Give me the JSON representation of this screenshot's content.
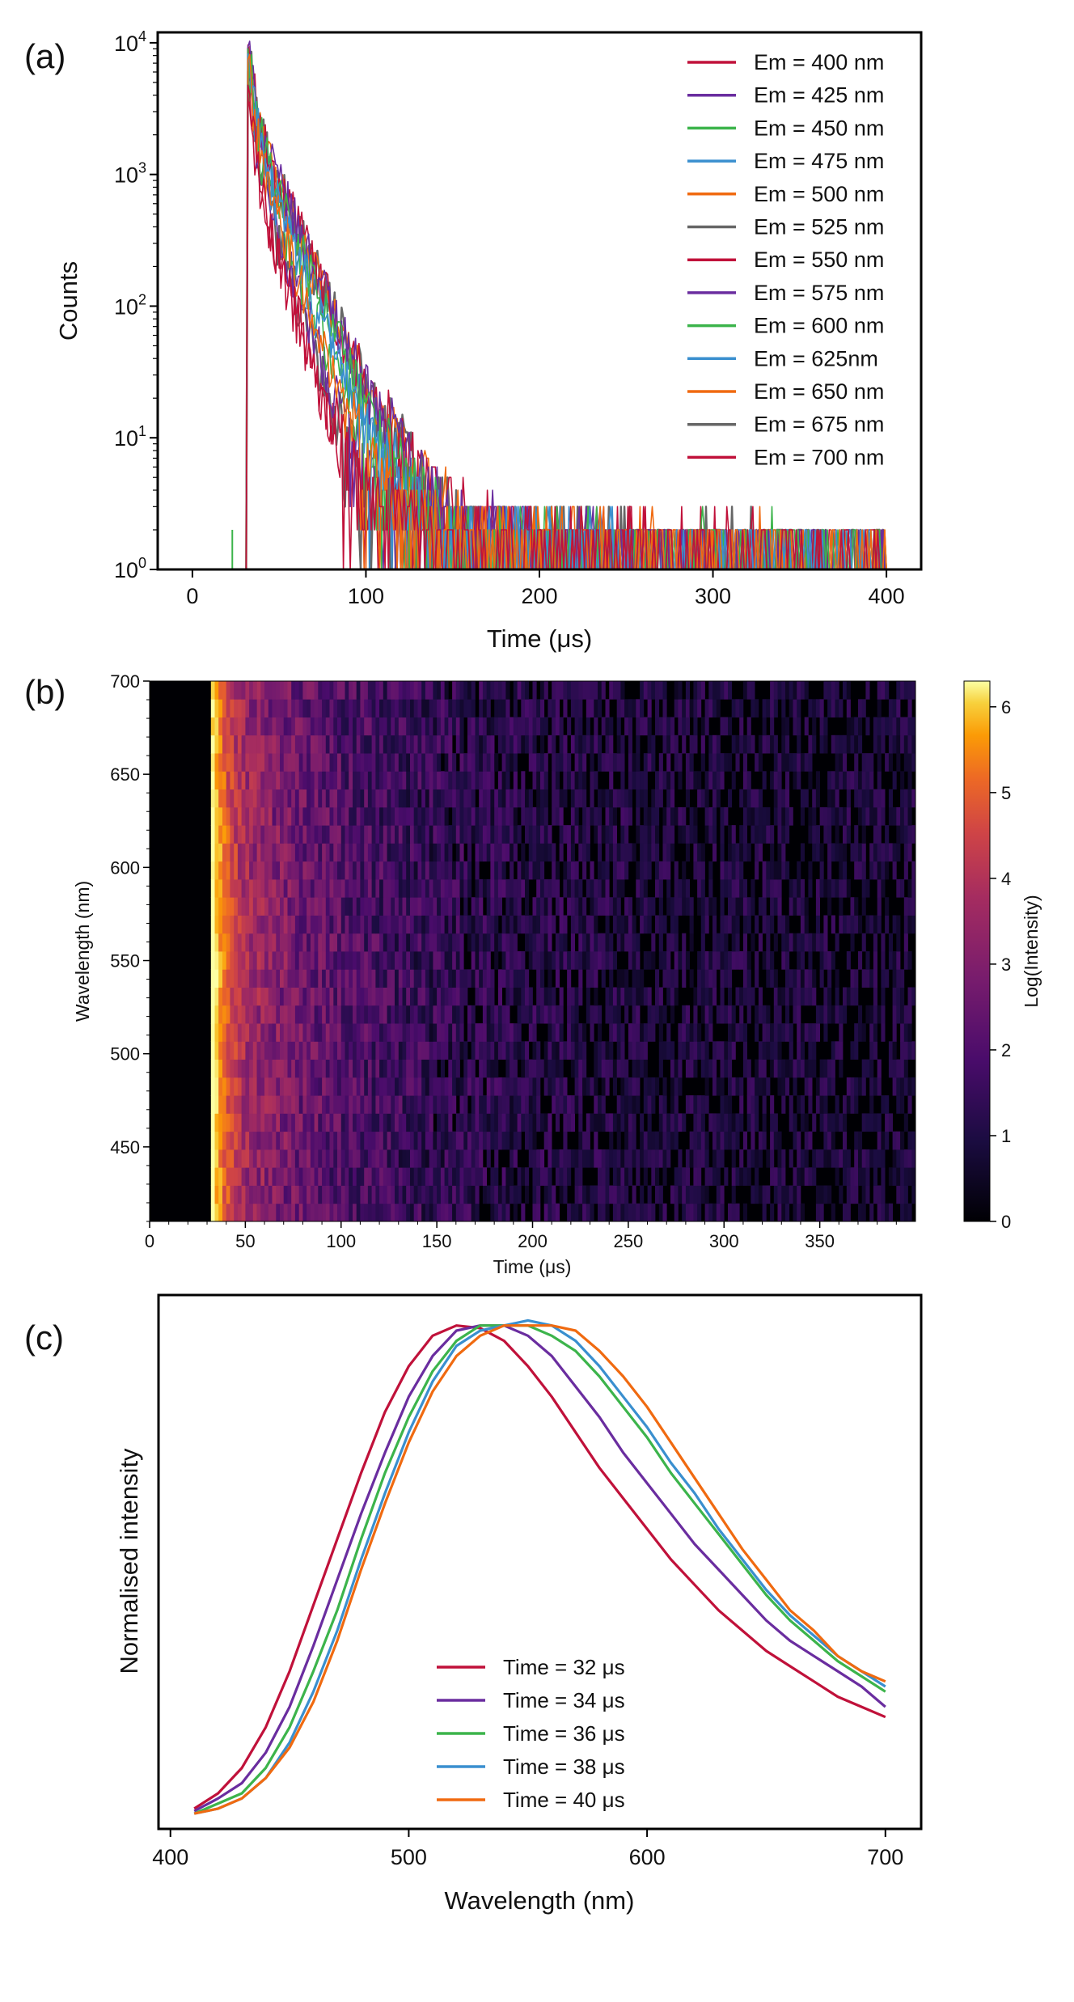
{
  "panel_labels": [
    "(a)",
    "(b)",
    "(c)"
  ],
  "chart_data": [
    {
      "panel": "(a)",
      "type": "line",
      "xlabel": "Time (μs)",
      "ylabel": "Counts",
      "xlim": [
        -20,
        420
      ],
      "ylim": [
        1,
        12000
      ],
      "yscale": "log",
      "xticks": [
        "0",
        "100",
        "200",
        "300",
        "400"
      ],
      "yticks": [
        {
          "base": "10",
          "exp": "0"
        },
        {
          "base": "10",
          "exp": "1"
        },
        {
          "base": "10",
          "exp": "2"
        },
        {
          "base": "10",
          "exp": "3"
        },
        {
          "base": "10",
          "exp": "4"
        }
      ],
      "legend_position": "top-right",
      "series": [
        {
          "name": "Em = 400 nm",
          "color": "#c0113a",
          "peak": 5000,
          "tau": 10
        },
        {
          "name": "Em = 425 nm",
          "color": "#6a2d9f",
          "peak": 6500,
          "tau": 11
        },
        {
          "name": "Em = 450 nm",
          "color": "#3cb44b",
          "peak": 8000,
          "tau": 12
        },
        {
          "name": "Em = 475 nm",
          "color": "#3a8fcf",
          "peak": 9000,
          "tau": 13
        },
        {
          "name": "Em = 500 nm",
          "color": "#f06a10",
          "peak": 10000,
          "tau": 14
        },
        {
          "name": "Em = 525 nm",
          "color": "#666666",
          "peak": 10500,
          "tau": 14
        },
        {
          "name": "Em = 550 nm",
          "color": "#c0113a",
          "peak": 11000,
          "tau": 14
        },
        {
          "name": "Em = 575 nm",
          "color": "#6a2d9f",
          "peak": 10500,
          "tau": 14
        },
        {
          "name": "Em = 600 nm",
          "color": "#3cb44b",
          "peak": 10000,
          "tau": 13
        },
        {
          "name": "Em = 625nm",
          "color": "#3a8fcf",
          "peak": 9000,
          "tau": 12
        },
        {
          "name": "Em = 650 nm",
          "color": "#f06a10",
          "peak": 8000,
          "tau": 11
        },
        {
          "name": "Em = 675 nm",
          "color": "#666666",
          "peak": 6500,
          "tau": 10
        },
        {
          "name": "Em = 700 nm",
          "color": "#c0113a",
          "peak": 5000,
          "tau": 10
        }
      ],
      "pulse_time": 32,
      "time_end": 400
    },
    {
      "panel": "(b)",
      "type": "heatmap",
      "xlabel": "Time (μs)",
      "ylabel": "Wavelength (nm)",
      "xlim": [
        0,
        400
      ],
      "ylim": [
        410,
        700
      ],
      "xticks": [
        "0",
        "50",
        "100",
        "150",
        "200",
        "250",
        "300",
        "350"
      ],
      "yticks": [
        "450",
        "500",
        "550",
        "600",
        "650",
        "700"
      ],
      "colorbar_label": "Log(Intensity)",
      "colorbar_range": [
        0,
        6.3
      ],
      "colorbar_ticks": [
        "0",
        "1",
        "2",
        "3",
        "4",
        "5",
        "6"
      ],
      "colormap": "inferno",
      "pulse_time": 32,
      "peak_wavelength": 540,
      "peak_log_intensity": 6.3
    },
    {
      "panel": "(c)",
      "type": "line",
      "xlabel": "Wavelength (nm)",
      "ylabel": "Normalised intensity",
      "xlim": [
        395,
        715
      ],
      "ylim": [
        0,
        1.05
      ],
      "xticks": [
        "400",
        "500",
        "600",
        "700"
      ],
      "legend_position": "lower-center",
      "x": [
        410,
        420,
        430,
        440,
        450,
        460,
        470,
        480,
        490,
        500,
        510,
        520,
        530,
        540,
        550,
        560,
        570,
        580,
        590,
        600,
        610,
        620,
        630,
        640,
        650,
        660,
        670,
        680,
        690,
        700
      ],
      "series": [
        {
          "name": "Time = 32 μs",
          "color": "#c0113a",
          "values": [
            0.04,
            0.07,
            0.12,
            0.2,
            0.31,
            0.44,
            0.57,
            0.7,
            0.82,
            0.91,
            0.97,
            0.99,
            0.985,
            0.96,
            0.91,
            0.85,
            0.78,
            0.71,
            0.65,
            0.59,
            0.53,
            0.48,
            0.43,
            0.39,
            0.35,
            0.32,
            0.29,
            0.26,
            0.24,
            0.22
          ]
        },
        {
          "name": "Time = 34 μs",
          "color": "#6a2d9f",
          "values": [
            0.035,
            0.06,
            0.09,
            0.15,
            0.24,
            0.36,
            0.49,
            0.62,
            0.74,
            0.85,
            0.93,
            0.98,
            0.99,
            0.99,
            0.97,
            0.93,
            0.87,
            0.81,
            0.74,
            0.68,
            0.62,
            0.56,
            0.51,
            0.46,
            0.41,
            0.37,
            0.34,
            0.31,
            0.28,
            0.24
          ]
        },
        {
          "name": "Time = 36 μs",
          "color": "#3cb44b",
          "values": [
            0.03,
            0.05,
            0.07,
            0.12,
            0.2,
            0.31,
            0.43,
            0.57,
            0.7,
            0.81,
            0.9,
            0.96,
            0.99,
            0.99,
            0.99,
            0.97,
            0.94,
            0.89,
            0.83,
            0.77,
            0.7,
            0.64,
            0.58,
            0.52,
            0.46,
            0.41,
            0.37,
            0.33,
            0.3,
            0.27
          ]
        },
        {
          "name": "Time = 38 μs",
          "color": "#3a8fcf",
          "values": [
            0.03,
            0.04,
            0.06,
            0.1,
            0.17,
            0.27,
            0.39,
            0.53,
            0.66,
            0.78,
            0.88,
            0.95,
            0.98,
            0.99,
            1.0,
            0.99,
            0.96,
            0.91,
            0.85,
            0.79,
            0.72,
            0.66,
            0.59,
            0.53,
            0.47,
            0.42,
            0.38,
            0.34,
            0.31,
            0.28
          ]
        },
        {
          "name": "Time = 40 μs",
          "color": "#f06a10",
          "values": [
            0.03,
            0.04,
            0.06,
            0.1,
            0.16,
            0.25,
            0.37,
            0.51,
            0.64,
            0.76,
            0.86,
            0.93,
            0.97,
            0.99,
            0.99,
            0.99,
            0.98,
            0.94,
            0.89,
            0.83,
            0.76,
            0.69,
            0.62,
            0.55,
            0.49,
            0.43,
            0.39,
            0.34,
            0.31,
            0.29
          ]
        }
      ]
    }
  ]
}
